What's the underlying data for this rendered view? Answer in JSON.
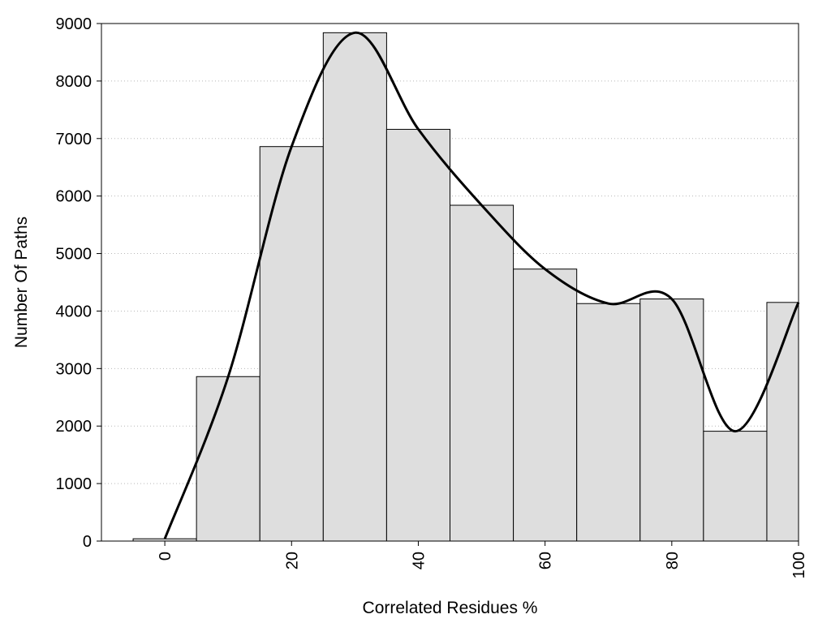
{
  "chart_data": {
    "type": "bar",
    "title": "",
    "xlabel": "Correlated Residues %",
    "ylabel": "Number Of Paths",
    "xlim": [
      -10,
      100
    ],
    "ylim": [
      0,
      9000
    ],
    "bin_width": 10,
    "x_ticks": [
      0,
      20,
      40,
      60,
      80,
      100
    ],
    "y_ticks": [
      0,
      1000,
      2000,
      3000,
      4000,
      5000,
      6000,
      7000,
      8000,
      9000
    ],
    "grid": "horizontal dotted",
    "legend": "none",
    "colors": {
      "bar_fill": "#dedede",
      "bar_edge": "#000000",
      "curve": "#000000"
    },
    "bars": {
      "x": [
        0,
        10,
        20,
        30,
        40,
        50,
        60,
        70,
        80,
        90,
        100
      ],
      "values": [
        40,
        2860,
        6860,
        8840,
        7160,
        5840,
        4730,
        4130,
        4210,
        1910,
        4150
      ]
    },
    "smooth_curve": {
      "x": [
        0,
        10,
        20,
        30,
        40,
        50,
        60,
        70,
        80,
        90,
        100
      ],
      "y": [
        40,
        2860,
        6860,
        8840,
        7160,
        5840,
        4730,
        4130,
        4210,
        1910,
        4150
      ]
    }
  }
}
